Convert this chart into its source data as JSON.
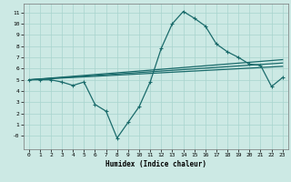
{
  "xlabel": "Humidex (Indice chaleur)",
  "xlim": [
    -0.5,
    23.5
  ],
  "ylim": [
    -1.2,
    11.8
  ],
  "yticks": [
    0,
    1,
    2,
    3,
    4,
    5,
    6,
    7,
    8,
    9,
    10,
    11
  ],
  "ytick_labels": [
    "-0",
    "1",
    "2",
    "3",
    "4",
    "5",
    "6",
    "7",
    "8",
    "9",
    "10",
    "11"
  ],
  "xticks": [
    0,
    1,
    2,
    3,
    4,
    5,
    6,
    7,
    8,
    9,
    10,
    11,
    12,
    13,
    14,
    15,
    16,
    17,
    18,
    19,
    20,
    21,
    22,
    23
  ],
  "bg_color": "#cce9e4",
  "grid_color": "#a8d4ce",
  "line_color": "#1a6b6b",
  "series": [
    {
      "x": [
        0,
        1,
        2,
        3,
        4,
        5,
        6,
        7,
        8,
        9,
        10,
        11,
        12,
        13,
        14,
        15,
        16,
        17,
        18,
        19,
        20,
        21,
        22,
        23
      ],
      "y": [
        5.0,
        5.0,
        5.0,
        4.8,
        4.5,
        4.8,
        2.8,
        2.2,
        -0.2,
        1.2,
        2.6,
        4.8,
        7.8,
        10.0,
        11.1,
        10.5,
        9.8,
        8.2,
        7.5,
        7.0,
        6.4,
        6.3,
        4.4,
        5.2
      ],
      "marker": true,
      "lw": 0.9
    },
    {
      "x": [
        0,
        23
      ],
      "y": [
        5.0,
        6.8
      ],
      "marker": false,
      "lw": 0.9
    },
    {
      "x": [
        0,
        23
      ],
      "y": [
        5.0,
        6.5
      ],
      "marker": false,
      "lw": 0.9
    },
    {
      "x": [
        0,
        23
      ],
      "y": [
        5.0,
        6.2
      ],
      "marker": false,
      "lw": 0.9
    }
  ]
}
